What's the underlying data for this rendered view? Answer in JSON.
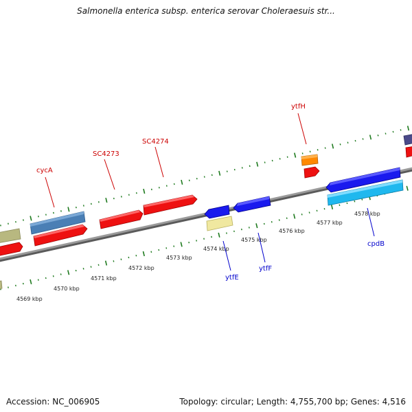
{
  "title": "Salmonella enterica subsp. enterica serovar Choleraesuis str...",
  "footer": {
    "accession": "Accession: NC_006905",
    "topology": "Topology: circular; Length: 4,755,700 bp; Genes: 4,516"
  },
  "scale_labels": [
    "4569 kbp",
    "4570 kbp",
    "4571 kbp",
    "4572 kbp",
    "4573 kbp",
    "4574 kbp",
    "4575 kbp",
    "4576 kbp",
    "4577 kbp",
    "4578 kbp"
  ],
  "gene_labels": [
    "cycA",
    "SC4273",
    "SC4274",
    "ytfH",
    "ytfE",
    "ytfF",
    "cpdB"
  ],
  "colors": {
    "backbone": "#8a8a8a",
    "tick": "#1e7a1e",
    "forward_label": "#cc0000",
    "reverse_label": "#0000cc",
    "red": "#ee1111",
    "steel_blue": "#4a7fb5",
    "blue": "#1a1aee",
    "light_blue": "#1fb8ee",
    "orange": "#ff8800",
    "pale_yellow": "#f0e8a0",
    "olive": "#b8b880",
    "purple": "#4a4a8a"
  }
}
